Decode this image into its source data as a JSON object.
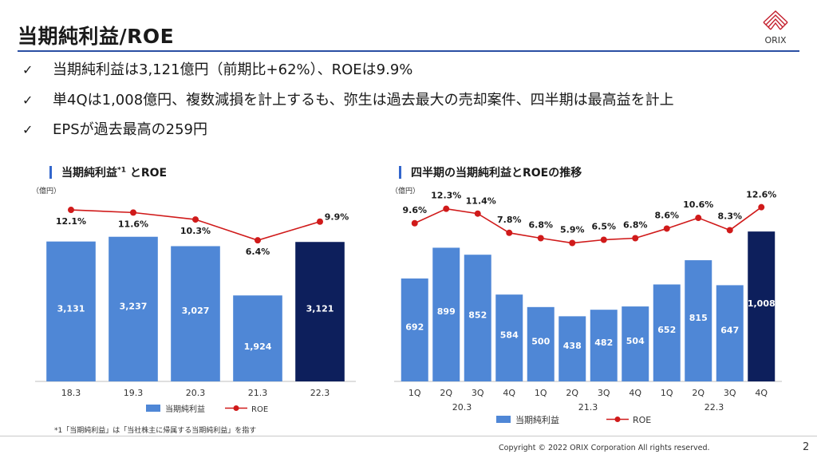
{
  "title": "当期純利益/ROE",
  "logo_text": "ORIX",
  "bullets": [
    "当期純利益は3,121億円（前期比+62%）、ROEは9.9%",
    "単4Qは1,008億円、複数減損を計上するも、弥生は過去最大の売却案件、四半期は最高益を計上",
    "EPSが過去最高の259円"
  ],
  "bullet_mark": "✓",
  "chart_data": [
    {
      "type": "bar",
      "title": "当期純利益",
      "title_sup": "*1",
      "title_suffix": " とROE",
      "unit": "（億円）",
      "categories": [
        "18.3",
        "19.3",
        "20.3",
        "21.3",
        "22.3"
      ],
      "series": [
        {
          "name": "当期純利益",
          "type": "bar",
          "values": [
            3131,
            3237,
            3027,
            1924,
            3121
          ],
          "value_labels": [
            "3,131",
            "3,237",
            "3,027",
            "1,924",
            "3,121"
          ]
        },
        {
          "name": "ROE",
          "type": "line",
          "values": [
            12.1,
            11.6,
            10.3,
            6.4,
            9.9
          ],
          "value_labels": [
            "12.1%",
            "11.6%",
            "10.3%",
            "6.4%",
            "9.9%"
          ]
        }
      ],
      "highlight_index": 4,
      "ylim": [
        0,
        3500
      ],
      "roe_lim": [
        0,
        13
      ],
      "legend_position": "bottom",
      "colors": {
        "bar": "#4f87d6",
        "highlight": "#0d1f5c",
        "line": "#d01a1a"
      }
    },
    {
      "type": "bar",
      "title": "四半期の当期純利益とROEの推移",
      "unit": "（億円）",
      "categories": [
        "1Q",
        "2Q",
        "3Q",
        "4Q",
        "1Q",
        "2Q",
        "3Q",
        "4Q",
        "1Q",
        "2Q",
        "3Q",
        "4Q"
      ],
      "groups": [
        {
          "label": "20.3",
          "start": 0,
          "end": 3
        },
        {
          "label": "21.3",
          "start": 4,
          "end": 7
        },
        {
          "label": "22.3",
          "start": 8,
          "end": 11
        }
      ],
      "series": [
        {
          "name": "当期純利益",
          "type": "bar",
          "values": [
            692,
            899,
            852,
            584,
            500,
            438,
            482,
            504,
            652,
            815,
            647,
            1008
          ],
          "value_labels": [
            "692",
            "899",
            "852",
            "584",
            "500",
            "438",
            "482",
            "504",
            "652",
            "815",
            "647",
            "1,008"
          ]
        },
        {
          "name": "ROE",
          "type": "line",
          "values": [
            9.6,
            12.3,
            11.4,
            7.8,
            6.8,
            5.9,
            6.5,
            6.8,
            8.6,
            10.6,
            8.3,
            12.6
          ],
          "value_labels": [
            "9.6%",
            "12.3%",
            "11.4%",
            "7.8%",
            "6.8%",
            "5.9%",
            "6.5%",
            "6.8%",
            "8.6%",
            "10.6%",
            "8.3%",
            "12.6%"
          ]
        }
      ],
      "highlight_index": 11,
      "ylim": [
        0,
        1100
      ],
      "roe_lim": [
        0,
        13
      ],
      "legend_position": "bottom",
      "colors": {
        "bar": "#4f87d6",
        "highlight": "#0d1f5c",
        "line": "#d01a1a"
      }
    }
  ],
  "footnote": "*1「当期純利益」は「当社株主に帰属する当期純利益」を指す",
  "copyright": "Copyright © 2022 ORIX Corporation  All rights reserved.",
  "page_number": "2"
}
